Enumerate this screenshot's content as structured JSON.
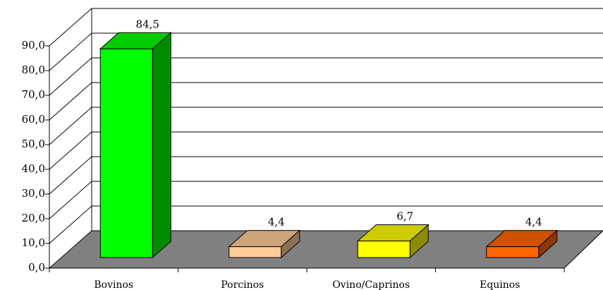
{
  "chart_data": {
    "type": "bar3d",
    "categories": [
      "Bovinos",
      "Porcinos",
      "Ovino/Caprinos",
      "Equinos"
    ],
    "values": [
      84.5,
      4.4,
      6.7,
      4.4
    ],
    "value_labels": [
      "84,5",
      "4,4",
      "6,7",
      "4,4"
    ],
    "colors": [
      "#00ff00",
      "#ffcc99",
      "#ffff00",
      "#ff6600"
    ],
    "ylim": [
      0,
      90
    ],
    "yticks": [
      {
        "value": 0,
        "label": "0,0"
      },
      {
        "value": 10,
        "label": "10,0"
      },
      {
        "value": 20,
        "label": "20,0"
      },
      {
        "value": 30,
        "label": "30,0"
      },
      {
        "value": 40,
        "label": "40,0"
      },
      {
        "value": 50,
        "label": "50,0"
      },
      {
        "value": 60,
        "label": "60,0"
      },
      {
        "value": 70,
        "label": "70,0"
      },
      {
        "value": 80,
        "label": "80,0"
      },
      {
        "value": 90,
        "label": "90,0"
      }
    ],
    "grid": true
  }
}
